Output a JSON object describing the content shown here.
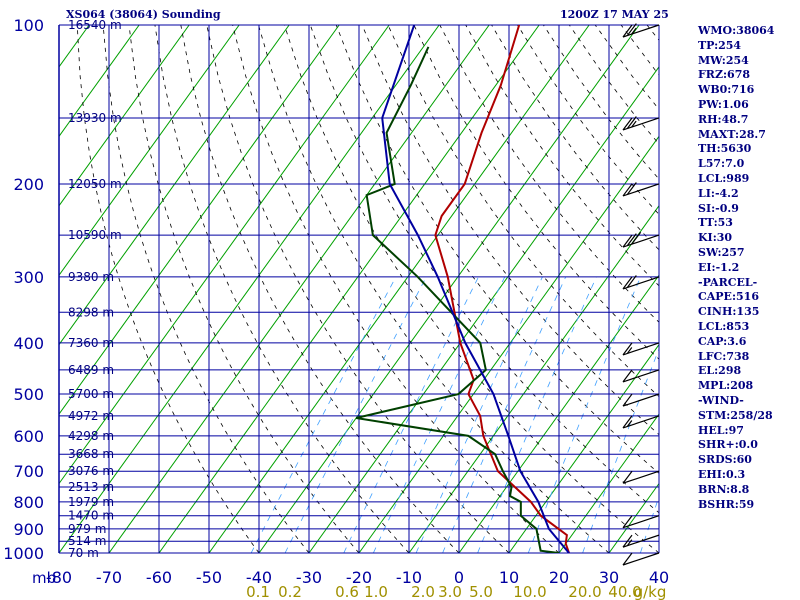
{
  "header": {
    "title": "XS064 (38064) Sounding",
    "time": "1200Z 17 MAY 25"
  },
  "indices": [
    "WMO:38064",
    "TP:254",
    "MW:254",
    "FRZ:678",
    "WB0:716",
    "PW:1.06",
    "RH:48.7",
    "MAXT:28.7",
    "TH:5630",
    "L57:7.0",
    "LCL:989",
    "LI:-4.2",
    "SI:-0.9",
    "TT:53",
    "KI:30",
    "SW:257",
    "EI:-1.2",
    "-PARCEL-",
    "CAPE:516",
    "CINH:135",
    "LCL:853",
    "CAP:3.6",
    "LFC:738",
    "EL:298",
    "MPL:208",
    "-WIND-",
    "STM:258/28",
    "HEL:97",
    "SHR+:0.0",
    "SRDS:60",
    "EHI:0.3",
    "BRN:8.8",
    "BSHR:59"
  ],
  "chart_data": {
    "type": "line",
    "title": "XS064 (38064) Sounding",
    "subtitle": "1200Z 17 MAY 25",
    "x_axis": {
      "unit_label": "mb",
      "ticks": [
        -80,
        -70,
        -60,
        -50,
        -40,
        -30,
        -20,
        -10,
        0,
        10,
        20,
        30,
        40
      ],
      "tick_labels": [
        "-80",
        "-70",
        "-60",
        "-50",
        "-40",
        "-30",
        "-20",
        "-10",
        "0",
        "10",
        "20",
        "30",
        "40"
      ],
      "range": [
        -80,
        40
      ]
    },
    "y_axis": {
      "scale": "log",
      "ticks": [
        100,
        200,
        300,
        400,
        500,
        600,
        700,
        800,
        900,
        1000
      ],
      "tick_labels": [
        "100",
        "200",
        "300",
        "400",
        "500",
        "600",
        "700",
        "800",
        "900",
        "1000"
      ],
      "range": [
        100,
        1000
      ]
    },
    "height_labels": [
      {
        "p": 100,
        "label": "16540 m"
      },
      {
        "p": 150,
        "label": "13930 m"
      },
      {
        "p": 200,
        "label": "12050 m"
      },
      {
        "p": 250,
        "label": "10590 m"
      },
      {
        "p": 300,
        "label": "9380 m"
      },
      {
        "p": 350,
        "label": "8298 m"
      },
      {
        "p": 400,
        "label": "7360 m"
      },
      {
        "p": 450,
        "label": "6489 m"
      },
      {
        "p": 500,
        "label": "5700 m"
      },
      {
        "p": 550,
        "label": "4972 m"
      },
      {
        "p": 600,
        "label": "4298 m"
      },
      {
        "p": 650,
        "label": "3668 m"
      },
      {
        "p": 700,
        "label": "3076 m"
      },
      {
        "p": 750,
        "label": "2513 m"
      },
      {
        "p": 800,
        "label": "1979 m"
      },
      {
        "p": 850,
        "label": "1470 m"
      },
      {
        "p": 900,
        "label": "979 m"
      },
      {
        "p": 950,
        "label": "514 m"
      },
      {
        "p": 1000,
        "label": "70 m"
      }
    ],
    "mixing_ratio_labels": [
      "0.1",
      "0.2",
      "0.6",
      "1.0",
      "2.0",
      "3.0",
      "5.0",
      "10.0",
      "20.0",
      "40.0",
      "g/kg"
    ],
    "series": [
      {
        "color": "#b00000",
        "points": [
          {
            "p": 1000,
            "t": 22.0
          },
          {
            "p": 960,
            "t": 20.0
          },
          {
            "p": 925,
            "t": 19.0
          },
          {
            "p": 850,
            "t": 11.0
          },
          {
            "p": 800,
            "t": 7.0
          },
          {
            "p": 700,
            "t": -4.0
          },
          {
            "p": 600,
            "t": -12.0
          },
          {
            "p": 550,
            "t": -15.5
          },
          {
            "p": 500,
            "t": -21.0
          },
          {
            "p": 470,
            "t": -22.0
          },
          {
            "p": 400,
            "t": -30.0
          },
          {
            "p": 300,
            "t": -42.0
          },
          {
            "p": 250,
            "t": -50.5
          },
          {
            "p": 230,
            "t": -52.0
          },
          {
            "p": 200,
            "t": -52.0
          },
          {
            "p": 160,
            "t": -56.0
          },
          {
            "p": 130,
            "t": -59.0
          },
          {
            "p": 100,
            "t": -64.0
          }
        ]
      },
      {
        "color": "#004000",
        "points": [
          {
            "p": 1000,
            "t": 20.0
          },
          {
            "p": 990,
            "t": 16.0
          },
          {
            "p": 900,
            "t": 12.0
          },
          {
            "p": 850,
            "t": 7.0
          },
          {
            "p": 800,
            "t": 5.0
          },
          {
            "p": 780,
            "t": 2.0
          },
          {
            "p": 750,
            "t": 1.0
          },
          {
            "p": 700,
            "t": -3.0
          },
          {
            "p": 650,
            "t": -7.0
          },
          {
            "p": 600,
            "t": -15.0
          },
          {
            "p": 555,
            "t": -40.0
          },
          {
            "p": 500,
            "t": -23.0
          },
          {
            "p": 450,
            "t": -21.0
          },
          {
            "p": 400,
            "t": -26.0
          },
          {
            "p": 300,
            "t": -48.0
          },
          {
            "p": 250,
            "t": -63.0
          },
          {
            "p": 210,
            "t": -70.0
          },
          {
            "p": 200,
            "t": -66.0
          },
          {
            "p": 160,
            "t": -75.0
          },
          {
            "p": 130,
            "t": -77.0
          },
          {
            "p": 110,
            "t": -79.0
          }
        ]
      },
      {
        "color": "#0000a0",
        "points": [
          {
            "p": 1000,
            "t": 22.0
          },
          {
            "p": 900,
            "t": 14.5
          },
          {
            "p": 800,
            "t": 8.5
          },
          {
            "p": 700,
            "t": 0.5
          },
          {
            "p": 600,
            "t": -7.0
          },
          {
            "p": 500,
            "t": -16.0
          },
          {
            "p": 400,
            "t": -29.0
          },
          {
            "p": 300,
            "t": -44.0
          },
          {
            "p": 250,
            "t": -54.0
          },
          {
            "p": 200,
            "t": -67.0
          },
          {
            "p": 150,
            "t": -78.0
          },
          {
            "p": 100,
            "t": -85.0
          }
        ]
      }
    ],
    "wind_barbs": [
      {
        "p": 100,
        "knots": 25
      },
      {
        "p": 150,
        "knots": 25
      },
      {
        "p": 200,
        "knots": 20
      },
      {
        "p": 250,
        "knots": 30
      },
      {
        "p": 300,
        "knots": 20
      },
      {
        "p": 400,
        "knots": 15
      },
      {
        "p": 450,
        "knots": 10
      },
      {
        "p": 500,
        "knots": 10
      },
      {
        "p": 550,
        "knots": 15
      },
      {
        "p": 700,
        "knots": 10
      },
      {
        "p": 850,
        "knots": 10
      },
      {
        "p": 925,
        "knots": 15
      },
      {
        "p": 1000,
        "knots": 10
      }
    ],
    "grid": true,
    "colors": {
      "grid": "#0000a0",
      "isotherm": "#00a000",
      "dry_adiabat": "#000000",
      "mixing_ratio": "#40a0ff",
      "axis_text": "#0000a0",
      "mixing_text": "#a09000"
    }
  }
}
